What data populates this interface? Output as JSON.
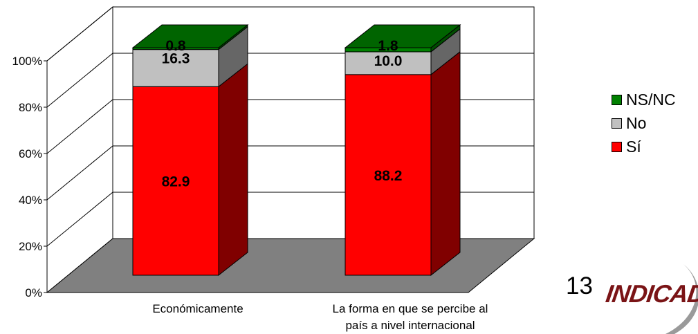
{
  "chart_data": {
    "type": "bar",
    "stacked": true,
    "percent": true,
    "three_d": true,
    "categories": [
      "Económicamente",
      "La forma en que se percibe al país a nivel internacional"
    ],
    "category_label_lines": [
      [
        "Económicamente"
      ],
      [
        "La forma en que se percibe al",
        "país a nivel internacional"
      ]
    ],
    "series": [
      {
        "name": "Sí",
        "values": [
          82.9,
          88.2
        ],
        "color": "#ff0000",
        "side_color": "#800000",
        "top_color": "#cc0000"
      },
      {
        "name": "No",
        "values": [
          16.3,
          10.0
        ],
        "color": "#c0c0c0",
        "side_color": "#666666",
        "top_color": "#a0a0a0"
      },
      {
        "name": "NS/NC",
        "values": [
          0.8,
          1.8
        ],
        "color": "#008000",
        "side_color": "#004d00",
        "top_color": "#006400"
      }
    ],
    "data_labels": [
      [
        "82.9",
        "16.3",
        "0.8"
      ],
      [
        "88.2",
        "10.0",
        "1.8"
      ]
    ],
    "yticks": [
      "0%",
      "20%",
      "40%",
      "60%",
      "80%",
      "100%"
    ],
    "ylim": [
      0,
      100
    ],
    "grid": true,
    "legend": {
      "position": "right",
      "order": [
        "NS/NC",
        "No",
        "Sí"
      ]
    },
    "floor_color": "#808080",
    "xlabel": "",
    "ylabel": ""
  },
  "legend_items": [
    {
      "label": "NS/NC",
      "color": "#008000"
    },
    {
      "label": "No",
      "color": "#c0c0c0"
    },
    {
      "label": "Sí",
      "color": "#ff0000"
    }
  ],
  "page_number": "13",
  "logo_text": "INDICAD"
}
